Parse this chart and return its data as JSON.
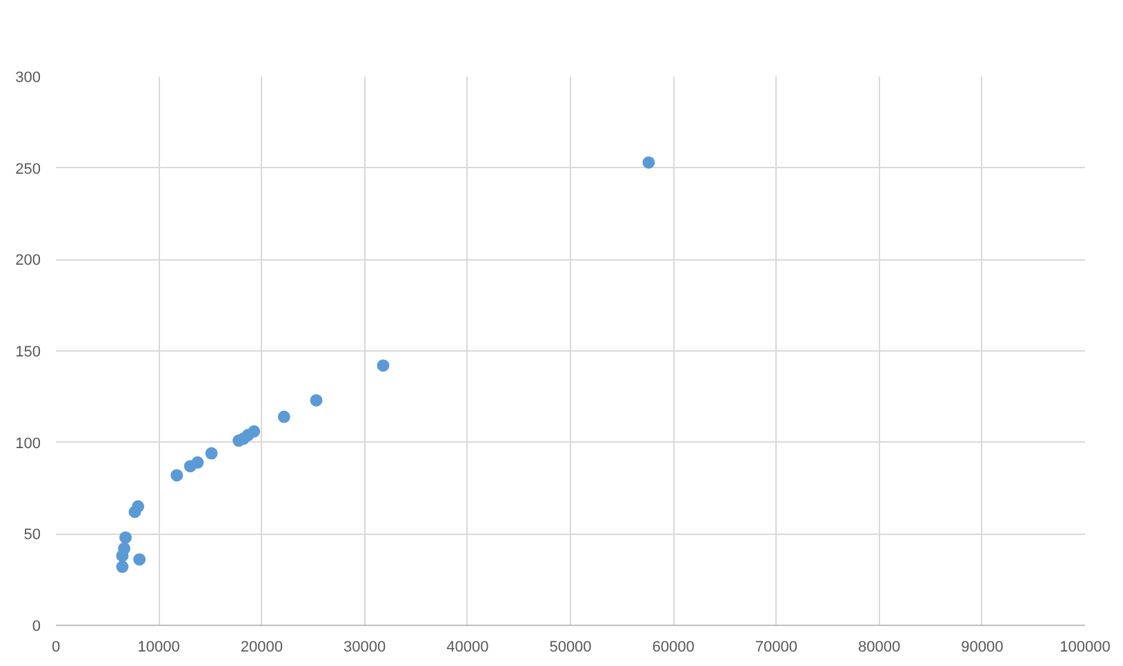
{
  "chart_data": {
    "type": "scatter",
    "marker": "circle",
    "grid": true,
    "xlim": [
      0,
      100000
    ],
    "xticks": [
      0,
      10000,
      20000,
      30000,
      40000,
      50000,
      60000,
      70000,
      80000,
      90000,
      100000
    ],
    "ylim": [
      0,
      300
    ],
    "yticks": [
      0,
      50,
      100,
      150,
      200,
      250,
      300
    ],
    "series": [
      {
        "color": "#5b9bd5",
        "x": [
          6460,
          6460,
          6640,
          6770,
          8120,
          7670,
          7980,
          11750,
          13060,
          13770,
          15120,
          17770,
          18220,
          18670,
          19250,
          22170,
          25300,
          31800,
          57600
        ],
        "values": [
          32,
          38,
          42,
          48,
          36,
          62,
          65,
          82,
          87,
          89,
          94,
          101,
          102,
          104,
          106,
          114,
          123,
          142,
          253
        ]
      }
    ]
  }
}
